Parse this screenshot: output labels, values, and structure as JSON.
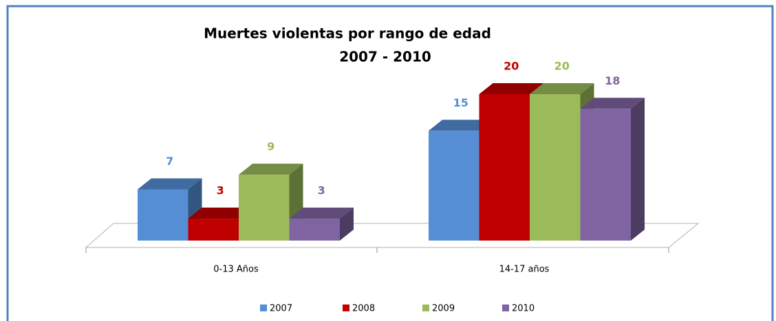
{
  "chart_data": {
    "type": "bar3d",
    "title": "Muertes violentas por rango de edad",
    "subtitle": "2007 - 2010",
    "categories": [
      "0-13 Años",
      "14-17 años"
    ],
    "series": [
      {
        "name": "2007",
        "color": "#558ed5",
        "values": [
          7,
          15
        ]
      },
      {
        "name": "2008",
        "color": "#c00000",
        "values": [
          3,
          20
        ]
      },
      {
        "name": "2009",
        "color": "#9bbb59",
        "values": [
          9,
          20
        ]
      },
      {
        "name": "2010",
        "color": "#8064a2",
        "values": [
          3,
          18
        ]
      }
    ],
    "legend": "bottom"
  }
}
